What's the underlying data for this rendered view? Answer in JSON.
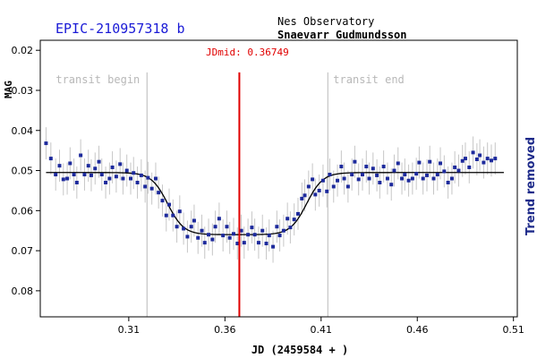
{
  "chart_data": {
    "type": "scatter",
    "title": "EPIC-210957318 b",
    "subtitle_lines": [
      "Nes Observatory",
      "Snaevarr Gudmundsson"
    ],
    "xlabel": "JD (2459584 + )",
    "ylabel": "MAG",
    "right_label": "Trend removed",
    "xlim": [
      0.264,
      0.512
    ],
    "ylim": [
      0.0175,
      0.0865
    ],
    "y_inverted": true,
    "x_ticks": [
      0.31,
      0.36,
      0.41,
      0.46,
      0.51
    ],
    "x_tick_labels": [
      "0.31",
      "0.36",
      "0.41",
      "0.46",
      "0.51"
    ],
    "y_ticks": [
      0.02,
      0.03,
      0.04,
      0.05,
      0.06,
      0.07,
      0.08
    ],
    "y_tick_labels": [
      "0.02",
      "0.03",
      "0.04",
      "0.05",
      "0.06",
      "0.07",
      "0.08"
    ],
    "annotations": {
      "jdmid_label": "JDmid: 0.36749",
      "jdmid": 0.36749,
      "transit_begin_label": "transit begin",
      "transit_begin": 0.3195,
      "transit_end_label": "transit end",
      "transit_end": 0.4135
    },
    "model": {
      "baseline_mag": 0.0505,
      "depth_mag": 0.0155,
      "ingress_mid": 0.3302,
      "egress_mid": 0.4025,
      "width": 0.0042
    },
    "series": [
      {
        "points": [
          [
            0.267,
            0.0432,
            0.004
          ],
          [
            0.2695,
            0.047,
            0.004
          ],
          [
            0.272,
            0.051,
            0.004
          ],
          [
            0.274,
            0.0488,
            0.004
          ],
          [
            0.276,
            0.0522,
            0.004
          ],
          [
            0.278,
            0.052,
            0.004
          ],
          [
            0.2795,
            0.0482,
            0.004
          ],
          [
            0.2815,
            0.051,
            0.004
          ],
          [
            0.283,
            0.053,
            0.004
          ],
          [
            0.285,
            0.0462,
            0.004
          ],
          [
            0.287,
            0.051,
            0.004
          ],
          [
            0.289,
            0.0488,
            0.004
          ],
          [
            0.2905,
            0.0512,
            0.004
          ],
          [
            0.2925,
            0.0495,
            0.004
          ],
          [
            0.2945,
            0.0478,
            0.004
          ],
          [
            0.296,
            0.051,
            0.004
          ],
          [
            0.298,
            0.053,
            0.004
          ],
          [
            0.3,
            0.052,
            0.004
          ],
          [
            0.3015,
            0.0492,
            0.004
          ],
          [
            0.3035,
            0.0515,
            0.004
          ],
          [
            0.3055,
            0.0484,
            0.004
          ],
          [
            0.307,
            0.052,
            0.004
          ],
          [
            0.309,
            0.05,
            0.004
          ],
          [
            0.311,
            0.052,
            0.004
          ],
          [
            0.3125,
            0.0506,
            0.004
          ],
          [
            0.3145,
            0.053,
            0.004
          ],
          [
            0.3165,
            0.0512,
            0.004
          ],
          [
            0.3185,
            0.054,
            0.004
          ],
          [
            0.32,
            0.0518,
            0.004
          ],
          [
            0.322,
            0.0545,
            0.004
          ],
          [
            0.324,
            0.052,
            0.004
          ],
          [
            0.3255,
            0.0555,
            0.004
          ],
          [
            0.3275,
            0.0575,
            0.004
          ],
          [
            0.3295,
            0.0612,
            0.004
          ],
          [
            0.331,
            0.0585,
            0.004
          ],
          [
            0.333,
            0.0612,
            0.004
          ],
          [
            0.335,
            0.064,
            0.004
          ],
          [
            0.3365,
            0.0602,
            0.004
          ],
          [
            0.3385,
            0.0645,
            0.004
          ],
          [
            0.3405,
            0.0665,
            0.004
          ],
          [
            0.3425,
            0.064,
            0.004
          ],
          [
            0.344,
            0.0625,
            0.004
          ],
          [
            0.346,
            0.0668,
            0.004
          ],
          [
            0.348,
            0.065,
            0.004
          ],
          [
            0.3495,
            0.068,
            0.004
          ],
          [
            0.3515,
            0.066,
            0.004
          ],
          [
            0.3535,
            0.0672,
            0.004
          ],
          [
            0.355,
            0.064,
            0.004
          ],
          [
            0.357,
            0.062,
            0.004
          ],
          [
            0.359,
            0.0662,
            0.004
          ],
          [
            0.361,
            0.064,
            0.004
          ],
          [
            0.3625,
            0.0668,
            0.004
          ],
          [
            0.3645,
            0.0658,
            0.004
          ],
          [
            0.3665,
            0.0682,
            0.004
          ],
          [
            0.3685,
            0.065,
            0.004
          ],
          [
            0.37,
            0.068,
            0.004
          ],
          [
            0.372,
            0.066,
            0.004
          ],
          [
            0.374,
            0.0642,
            0.004
          ],
          [
            0.3755,
            0.066,
            0.004
          ],
          [
            0.3775,
            0.068,
            0.004
          ],
          [
            0.3795,
            0.065,
            0.004
          ],
          [
            0.3815,
            0.0682,
            0.004
          ],
          [
            0.383,
            0.0662,
            0.004
          ],
          [
            0.385,
            0.069,
            0.004
          ],
          [
            0.387,
            0.064,
            0.004
          ],
          [
            0.3885,
            0.0662,
            0.004
          ],
          [
            0.3905,
            0.065,
            0.004
          ],
          [
            0.3925,
            0.062,
            0.004
          ],
          [
            0.394,
            0.0642,
            0.004
          ],
          [
            0.396,
            0.0622,
            0.004
          ],
          [
            0.398,
            0.0608,
            0.004
          ],
          [
            0.4,
            0.057,
            0.004
          ],
          [
            0.4015,
            0.0562,
            0.004
          ],
          [
            0.4035,
            0.054,
            0.004
          ],
          [
            0.4055,
            0.0522,
            0.004
          ],
          [
            0.407,
            0.056,
            0.004
          ],
          [
            0.409,
            0.055,
            0.004
          ],
          [
            0.411,
            0.0525,
            0.004
          ],
          [
            0.413,
            0.0552,
            0.004
          ],
          [
            0.4145,
            0.051,
            0.004
          ],
          [
            0.4165,
            0.054,
            0.004
          ],
          [
            0.4185,
            0.0525,
            0.004
          ],
          [
            0.4205,
            0.049,
            0.004
          ],
          [
            0.422,
            0.052,
            0.004
          ],
          [
            0.424,
            0.054,
            0.004
          ],
          [
            0.426,
            0.051,
            0.004
          ],
          [
            0.4275,
            0.0478,
            0.004
          ],
          [
            0.4295,
            0.0522,
            0.004
          ],
          [
            0.4315,
            0.051,
            0.004
          ],
          [
            0.4335,
            0.049,
            0.004
          ],
          [
            0.435,
            0.052,
            0.004
          ],
          [
            0.437,
            0.0495,
            0.004
          ],
          [
            0.439,
            0.0512,
            0.004
          ],
          [
            0.4405,
            0.053,
            0.004
          ],
          [
            0.4425,
            0.049,
            0.004
          ],
          [
            0.4445,
            0.052,
            0.004
          ],
          [
            0.4465,
            0.0535,
            0.004
          ],
          [
            0.448,
            0.05,
            0.004
          ],
          [
            0.45,
            0.0482,
            0.004
          ],
          [
            0.452,
            0.052,
            0.004
          ],
          [
            0.4535,
            0.051,
            0.004
          ],
          [
            0.4555,
            0.0525,
            0.004
          ],
          [
            0.4575,
            0.052,
            0.004
          ],
          [
            0.4595,
            0.0508,
            0.004
          ],
          [
            0.461,
            0.048,
            0.004
          ],
          [
            0.463,
            0.052,
            0.004
          ],
          [
            0.465,
            0.0512,
            0.004
          ],
          [
            0.4665,
            0.0478,
            0.004
          ],
          [
            0.4685,
            0.052,
            0.004
          ],
          [
            0.4705,
            0.051,
            0.004
          ],
          [
            0.472,
            0.0482,
            0.004
          ],
          [
            0.474,
            0.0502,
            0.004
          ],
          [
            0.476,
            0.053,
            0.004
          ],
          [
            0.478,
            0.052,
            0.004
          ],
          [
            0.4795,
            0.0492,
            0.004
          ],
          [
            0.4815,
            0.05,
            0.004
          ],
          [
            0.4835,
            0.0476,
            0.004
          ],
          [
            0.485,
            0.047,
            0.004
          ],
          [
            0.487,
            0.0492,
            0.004
          ],
          [
            0.489,
            0.0455,
            0.004
          ],
          [
            0.491,
            0.0472,
            0.004
          ],
          [
            0.4925,
            0.0462,
            0.004
          ],
          [
            0.4945,
            0.048,
            0.004
          ],
          [
            0.4965,
            0.047,
            0.004
          ],
          [
            0.4985,
            0.0475,
            0.004
          ],
          [
            0.5005,
            0.047,
            0.004
          ]
        ]
      }
    ]
  },
  "colors": {
    "title": "#1a1ad6",
    "data_point": "#1d2a9c",
    "error_bar": "#c6c6c6",
    "model_line": "#000000",
    "jdmid_line": "#e00000",
    "transit_marker": "#c4c4c4",
    "transit_text": "#b8b8b8",
    "right_label": "#1d2a8a",
    "axis": "#000000"
  }
}
